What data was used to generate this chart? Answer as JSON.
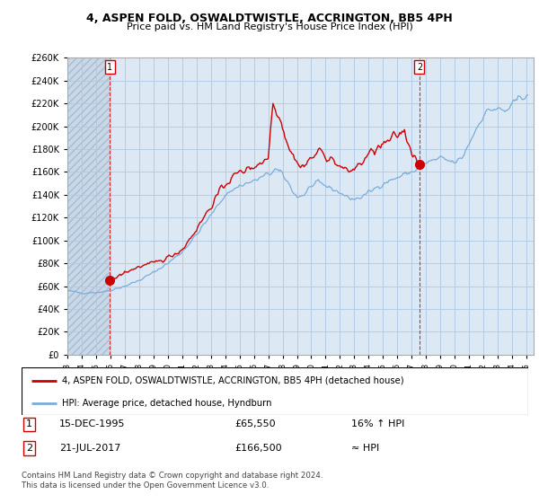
{
  "title": "4, ASPEN FOLD, OSWALDTWISTLE, ACCRINGTON, BB5 4PH",
  "subtitle": "Price paid vs. HM Land Registry's House Price Index (HPI)",
  "legend_line1": "4, ASPEN FOLD, OSWALDTWISTLE, ACCRINGTON, BB5 4PH (detached house)",
  "legend_line2": "HPI: Average price, detached house, Hyndburn",
  "annotation1_label": "1",
  "annotation1_date": "15-DEC-1995",
  "annotation1_price": "£65,550",
  "annotation1_hpi": "16% ↑ HPI",
  "annotation2_label": "2",
  "annotation2_date": "21-JUL-2017",
  "annotation2_price": "£166,500",
  "annotation2_hpi": "≈ HPI",
  "footer": "Contains HM Land Registry data © Crown copyright and database right 2024.\nThis data is licensed under the Open Government Licence v3.0.",
  "ylim": [
    0,
    260000
  ],
  "yticks": [
    0,
    20000,
    40000,
    60000,
    80000,
    100000,
    120000,
    140000,
    160000,
    180000,
    200000,
    220000,
    240000,
    260000
  ],
  "price_paid_color": "#cc0000",
  "hpi_color": "#7aaddb",
  "marker_color": "#cc0000",
  "bg_color": "#ffffff",
  "plot_bg_color": "#dce9f5",
  "grid_color": "#b0c8e0",
  "hatch_color": "#c5d5e5",
  "sale1_x": 1995.958,
  "sale1_y": 65550,
  "sale2_x": 2017.542,
  "sale2_y": 166500,
  "xlim_left": 1993.0,
  "xlim_right": 2025.5
}
